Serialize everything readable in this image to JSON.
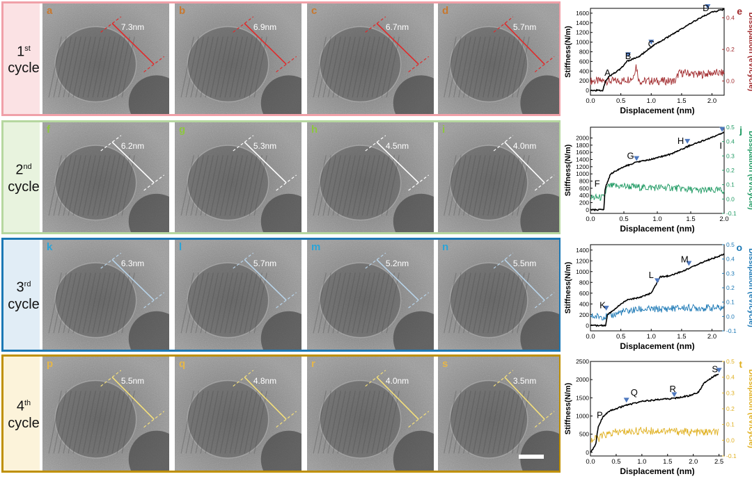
{
  "colors": {
    "cycle1": "#a0282b",
    "cycle2": "#1f9a63",
    "cycle3": "#1b78b5",
    "cycle4": "#e0b020",
    "stiff": "#000000",
    "arrow": "#4f79bf"
  },
  "rows": [
    {
      "key": "cycle1",
      "num": "1",
      "sup": "st",
      "word": "cycle",
      "border": "#f0a0a8",
      "bg": "#fbe2e4",
      "ann": "#e02a2a",
      "panels": [
        {
          "label": "a",
          "dim": "7.3nm"
        },
        {
          "label": "b",
          "dim": "6.9nm"
        },
        {
          "label": "c",
          "dim": "6.7nm"
        },
        {
          "label": "d",
          "dim": "5.7nm"
        }
      ],
      "labelColor": "#c8782e"
    },
    {
      "key": "cycle2",
      "num": "2",
      "sup": "nd",
      "word": "cycle",
      "border": "#b6d7a0",
      "bg": "#e8f3de",
      "ann": "#ffffff",
      "panels": [
        {
          "label": "f",
          "dim": "6.2nm"
        },
        {
          "label": "g",
          "dim": "5.3nm"
        },
        {
          "label": "h",
          "dim": "4.5nm"
        },
        {
          "label": "i",
          "dim": "4.0nm"
        }
      ],
      "labelColor": "#8dc63f"
    },
    {
      "key": "cycle3",
      "num": "3",
      "sup": "rd",
      "word": "cycle",
      "border": "#1b78b5",
      "bg": "#e1edf6",
      "ann": "#b8d4ea",
      "panels": [
        {
          "label": "k",
          "dim": "6.3nm"
        },
        {
          "label": "l",
          "dim": "5.7nm"
        },
        {
          "label": "m",
          "dim": "5.2nm"
        },
        {
          "label": "n",
          "dim": "5.5nm"
        }
      ],
      "labelColor": "#2aa4d8"
    },
    {
      "key": "cycle4",
      "num": "4",
      "sup": "th",
      "word": "cycle",
      "border": "#bf9000",
      "bg": "#fcf3da",
      "ann": "#f5e07a",
      "panels": [
        {
          "label": "p",
          "dim": "5.5nm"
        },
        {
          "label": "q",
          "dim": "4.8nm"
        },
        {
          "label": "r",
          "dim": "4.0nm"
        },
        {
          "label": "s",
          "dim": "3.5nm"
        }
      ],
      "labelColor": "#e5b64a"
    }
  ],
  "chart_data": [
    {
      "type": "line",
      "panel": "e",
      "xlabel": "Displacement (nm)",
      "ylabel": "Stiffness(N/m)",
      "y2label": "Dissipation (eV/cycle)",
      "xlim": [
        0,
        2.2
      ],
      "ylim": [
        -100,
        1700
      ],
      "y2lim": [
        -0.09,
        0.46
      ],
      "xticks": [
        0.0,
        0.5,
        1.0,
        1.5,
        2.0
      ],
      "xticklabels": [
        "0.0",
        "0.5",
        "1.0",
        "1.5",
        "2.0"
      ],
      "yticks": [
        0,
        200,
        400,
        600,
        800,
        1000,
        1200,
        1400,
        1600
      ],
      "yticklabels": [
        "0",
        "200",
        "400",
        "600",
        "800",
        "1000",
        "1200",
        "1400",
        "1600"
      ],
      "y2ticks": [
        0.0,
        0.2,
        0.4
      ],
      "y2ticklabels": [
        "0.0",
        "0.2",
        "0.4"
      ],
      "stiffness": {
        "x": [
          0,
          0.2,
          0.25,
          0.3,
          0.5,
          0.6,
          0.8,
          1.0,
          1.2,
          1.4,
          1.6,
          1.8,
          2.0,
          2.2
        ],
        "y": [
          0,
          0,
          200,
          280,
          450,
          600,
          700,
          900,
          1050,
          1200,
          1350,
          1500,
          1620,
          1680
        ]
      },
      "dissipation": {
        "x": [
          0,
          0.2,
          0.5,
          0.7,
          0.75,
          0.8,
          1.0,
          1.4,
          1.45,
          1.6,
          1.8,
          2.0,
          2.2
        ],
        "y": [
          0,
          0.0,
          0.0,
          0.02,
          0.1,
          0.0,
          0.0,
          0.0,
          0.05,
          0.05,
          0.04,
          0.05,
          0.05
        ]
      },
      "points": [
        {
          "label": "A",
          "x": 0.28,
          "y": 300
        },
        {
          "label": "B",
          "x": 0.62,
          "y": 650
        },
        {
          "label": "C",
          "x": 1.0,
          "y": 900
        },
        {
          "label": "D",
          "x": 1.9,
          "y": 1640
        }
      ],
      "arrows": [
        {
          "x": 0.62,
          "y": 660
        },
        {
          "x": 1.0,
          "y": 920
        },
        {
          "x": 1.93,
          "y": 1655
        }
      ]
    },
    {
      "type": "line",
      "panel": "j",
      "xlabel": "Displacement (nm)",
      "ylabel": "Stiffness(N/m)",
      "y2label": "Dissipation (eV/cycle)",
      "xlim": [
        0,
        2.0
      ],
      "ylim": [
        -100,
        2300
      ],
      "y2lim": [
        -0.1,
        0.5
      ],
      "xticks": [
        0.0,
        0.5,
        1.0,
        1.5,
        2.0
      ],
      "xticklabels": [
        "0.0",
        "0.5",
        "1.0",
        "1.5",
        "2.0"
      ],
      "yticks": [
        0,
        200,
        400,
        600,
        800,
        1000,
        1200,
        1400,
        1600,
        1800,
        2000
      ],
      "yticklabels": [
        "0",
        "200",
        "400",
        "600",
        "800",
        "1000",
        "1200",
        "1400",
        "1600",
        "1800",
        "2000"
      ],
      "y2ticks": [
        -0.1,
        0.0,
        0.1,
        0.2,
        0.3,
        0.4,
        0.5
      ],
      "y2ticklabels": [
        "-0.1",
        "0.0",
        "0.1",
        "0.2",
        "0.3",
        "0.4",
        "0.5"
      ],
      "stiffness": {
        "x": [
          0,
          0.2,
          0.22,
          0.3,
          0.5,
          0.7,
          0.9,
          1.2,
          1.5,
          1.8,
          2.0
        ],
        "y": [
          0,
          0,
          600,
          1000,
          1200,
          1330,
          1400,
          1550,
          1800,
          2000,
          2150
        ]
      },
      "dissipation": {
        "x": [
          0,
          0.2,
          0.25,
          0.3,
          0.5,
          0.8,
          1.2,
          1.6,
          2.0
        ],
        "y": [
          0.01,
          0.01,
          0.08,
          0.09,
          0.09,
          0.08,
          0.08,
          0.06,
          0.06
        ]
      },
      "points": [
        {
          "label": "F",
          "x": 0.1,
          "y": 650
        },
        {
          "label": "G",
          "x": 0.6,
          "y": 1420
        },
        {
          "label": "H",
          "x": 1.35,
          "y": 1840
        },
        {
          "label": "I",
          "x": 1.95,
          "y": 1700
        }
      ],
      "arrows": [
        {
          "x": 0.69,
          "y": 1320
        },
        {
          "x": 1.45,
          "y": 1800
        },
        {
          "x": 1.97,
          "y": 2130
        }
      ]
    },
    {
      "type": "line",
      "panel": "o",
      "xlabel": "Displacement (nm)",
      "ylabel": "Stiffness(N/m)",
      "y2label": "Dissipation (eV/cycle)",
      "xlim": [
        0,
        2.2
      ],
      "ylim": [
        -100,
        1500
      ],
      "y2lim": [
        -0.1,
        0.5
      ],
      "xticks": [
        0.0,
        0.5,
        1.0,
        1.5,
        2.0
      ],
      "xticklabels": [
        "0.0",
        "0.5",
        "1.0",
        "1.5",
        "2.0"
      ],
      "yticks": [
        0,
        200,
        400,
        600,
        800,
        1000,
        1200,
        1400
      ],
      "yticklabels": [
        "0",
        "200",
        "400",
        "600",
        "800",
        "1000",
        "1200",
        "1400"
      ],
      "y2ticks": [
        -0.1,
        0.0,
        0.1,
        0.2,
        0.3,
        0.4,
        0.5
      ],
      "y2ticklabels": [
        "-0.1",
        "0.0",
        "0.1",
        "0.2",
        "0.3",
        "0.4",
        "0.5"
      ],
      "stiffness": {
        "x": [
          0,
          0.25,
          0.28,
          0.4,
          0.5,
          0.6,
          0.8,
          1.0,
          1.05,
          1.15,
          1.3,
          1.5,
          1.7,
          1.9,
          2.2
        ],
        "y": [
          0,
          0,
          200,
          300,
          400,
          470,
          520,
          600,
          700,
          900,
          920,
          1000,
          1100,
          1200,
          1320
        ]
      },
      "dissipation": {
        "x": [
          0,
          0.3,
          0.5,
          0.8,
          1.1,
          1.5,
          2.0,
          2.2
        ],
        "y": [
          0.0,
          0.0,
          0.03,
          0.05,
          0.05,
          0.06,
          0.06,
          0.06
        ]
      },
      "points": [
        {
          "label": "K",
          "x": 0.2,
          "y": 320
        },
        {
          "label": "L",
          "x": 1.0,
          "y": 880
        },
        {
          "label": "M",
          "x": 1.55,
          "y": 1170
        }
      ],
      "arrows": [
        {
          "x": 0.26,
          "y": 250
        },
        {
          "x": 1.1,
          "y": 760
        },
        {
          "x": 1.62,
          "y": 1080
        }
      ]
    },
    {
      "type": "line",
      "panel": "t",
      "xlabel": "Displacement (nm)",
      "ylabel": "Stiffness(N/m)",
      "y2label": "Dissipation (eV/cycle)",
      "xlim": [
        0,
        2.6
      ],
      "ylim": [
        -100,
        2500
      ],
      "y2lim": [
        -0.1,
        0.5
      ],
      "xticks": [
        0.0,
        0.5,
        1.0,
        1.5,
        2.0,
        2.5
      ],
      "xticklabels": [
        "0.0",
        "0.5",
        "1.0",
        "1.5",
        "2.0",
        "2.5"
      ],
      "yticks": [
        0,
        500,
        1000,
        1500,
        2000,
        2500
      ],
      "yticklabels": [
        "0",
        "500",
        "1000",
        "1500",
        "2000",
        "2500"
      ],
      "y2ticks": [
        -0.1,
        0.0,
        0.1,
        0.2,
        0.3,
        0.4,
        0.5
      ],
      "y2ticklabels": [
        "-0.1",
        "0.0",
        "0.1",
        "0.2",
        "0.3",
        "0.4",
        "0.5"
      ],
      "stiffness": {
        "x": [
          0,
          0.1,
          0.15,
          0.25,
          0.4,
          0.7,
          1.0,
          1.3,
          1.6,
          1.9,
          2.1,
          2.2,
          2.4,
          2.5
        ],
        "y": [
          0,
          200,
          700,
          1000,
          1150,
          1300,
          1400,
          1450,
          1480,
          1550,
          1650,
          1900,
          2100,
          2150
        ]
      },
      "dissipation": {
        "x": [
          0,
          0.15,
          0.25,
          0.5,
          1.0,
          1.5,
          2.0,
          2.5
        ],
        "y": [
          0.0,
          0.01,
          0.03,
          0.05,
          0.06,
          0.06,
          0.05,
          0.05
        ]
      },
      "points": [
        {
          "label": "P",
          "x": 0.18,
          "y": 940
        },
        {
          "label": "Q",
          "x": 0.85,
          "y": 1560
        },
        {
          "label": "R",
          "x": 1.6,
          "y": 1660
        },
        {
          "label": "S",
          "x": 2.42,
          "y": 2200
        }
      ],
      "arrows": [
        {
          "x": 0.7,
          "y": 1330
        },
        {
          "x": 1.63,
          "y": 1480
        },
        {
          "x": 2.5,
          "y": 2150
        }
      ]
    }
  ]
}
